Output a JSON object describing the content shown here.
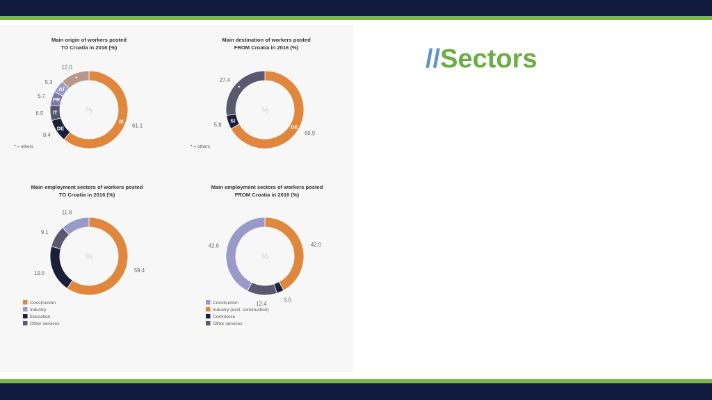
{
  "slide": {
    "title_slash": "//",
    "title_text": "Sectors",
    "colors": {
      "navy": "#111a3f",
      "green": "#7ab648",
      "slash": "#5b8fd0",
      "title": "#6aac45"
    }
  },
  "chart_data": [
    {
      "type": "pie",
      "title_lines": [
        "Main origin of workers posted",
        "TO Croatia in 2016 (%)"
      ],
      "center_label": "%",
      "footnote": "* = others",
      "slices": [
        {
          "label": "SI",
          "value": 61.1,
          "color": "#e0873d"
        },
        {
          "label": "DE",
          "value": 9.4,
          "color": "#1c1f3a"
        },
        {
          "label": "IT",
          "value": 6.5,
          "color": "#54566d"
        },
        {
          "label": "FR",
          "value": 5.7,
          "color": "#7e7aa8"
        },
        {
          "label": "AT",
          "value": 5.3,
          "color": "#9a9ac9"
        },
        {
          "label": "*",
          "value": 12.0,
          "color": "#b8988a"
        }
      ]
    },
    {
      "type": "pie",
      "title_lines": [
        "Main destination of workers posted",
        "FROM Croatia in 2016 (%)"
      ],
      "center_label": "%",
      "footnote": "* = others",
      "slices": [
        {
          "label": "DE",
          "value": 66.9,
          "color": "#e0873d"
        },
        {
          "label": "SI",
          "value": 5.8,
          "color": "#1c1f3a"
        },
        {
          "label": "*",
          "value": 27.4,
          "color": "#5b596f"
        }
      ]
    },
    {
      "type": "pie",
      "title_lines": [
        "Main employment sectors of workers posted",
        "TO Croatia in 2016 (%)"
      ],
      "center_label": "%",
      "slices": [
        {
          "name": "Construction",
          "value": 59.4,
          "color": "#e0873d"
        },
        {
          "name": "Education",
          "value": 19.5,
          "color": "#1c1f3a"
        },
        {
          "name": "Other services",
          "value": 9.1,
          "color": "#5b596f"
        },
        {
          "name": "Industry",
          "value": 11.8,
          "color": "#9a9ac9"
        }
      ],
      "legend": [
        {
          "name": "Construction",
          "color": "#e0873d"
        },
        {
          "name": "Industry",
          "color": "#9a9ac9"
        },
        {
          "name": "Education",
          "color": "#1c1f3a"
        },
        {
          "name": "Other services",
          "color": "#5b596f"
        }
      ]
    },
    {
      "type": "pie",
      "title_lines": [
        "Main employment sectors of workers posted",
        "FROM Croatia in 2016 (%)"
      ],
      "center_label": "%",
      "slices": [
        {
          "name": "Industry (excl. construction)",
          "value": 42.0,
          "color": "#e0873d"
        },
        {
          "name": "Commerce",
          "value": 3.0,
          "color": "#1c1f3a"
        },
        {
          "name": "Other services",
          "value": 12.4,
          "color": "#5b596f"
        },
        {
          "name": "Construction",
          "value": 42.6,
          "color": "#9a9ac9"
        }
      ],
      "legend": [
        {
          "name": "Construction",
          "color": "#9a9ac9"
        },
        {
          "name": "Industry (excl. construction)",
          "color": "#e0873d"
        },
        {
          "name": "Commerce",
          "color": "#1c1f3a"
        },
        {
          "name": "Other services",
          "color": "#5b596f"
        }
      ]
    }
  ]
}
